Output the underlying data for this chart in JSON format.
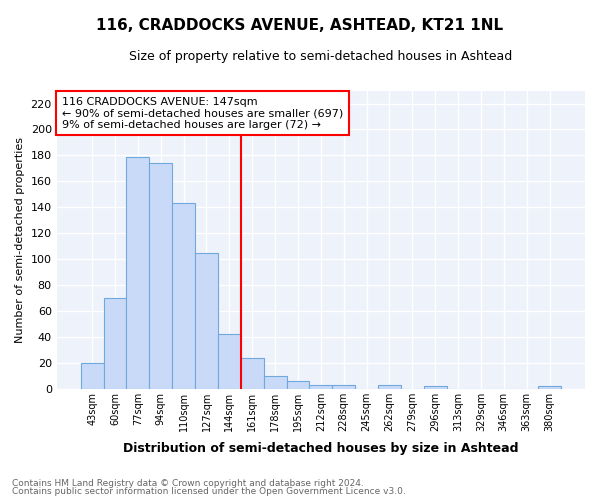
{
  "title": "116, CRADDOCKS AVENUE, ASHTEAD, KT21 1NL",
  "subtitle": "Size of property relative to semi-detached houses in Ashtead",
  "xlabel": "Distribution of semi-detached houses by size in Ashtead",
  "ylabel": "Number of semi-detached properties",
  "bar_labels": [
    "43sqm",
    "60sqm",
    "77sqm",
    "94sqm",
    "110sqm",
    "127sqm",
    "144sqm",
    "161sqm",
    "178sqm",
    "195sqm",
    "212sqm",
    "228sqm",
    "245sqm",
    "262sqm",
    "279sqm",
    "296sqm",
    "313sqm",
    "329sqm",
    "346sqm",
    "363sqm",
    "380sqm"
  ],
  "bar_values": [
    20,
    70,
    179,
    174,
    143,
    105,
    42,
    24,
    10,
    6,
    3,
    3,
    0,
    3,
    0,
    2,
    0,
    0,
    0,
    0,
    2
  ],
  "bar_color": "#c9daf8",
  "bar_edge_color": "#6fa8dc",
  "vline_color": "red",
  "annotation_title": "116 CRADDOCKS AVENUE: 147sqm",
  "annotation_line1": "← 90% of semi-detached houses are smaller (697)",
  "annotation_line2": "9% of semi-detached houses are larger (72) →",
  "annotation_box_color": "white",
  "annotation_box_edge_color": "red",
  "ylim": [
    0,
    230
  ],
  "yticks": [
    0,
    20,
    40,
    60,
    80,
    100,
    120,
    140,
    160,
    180,
    200,
    220
  ],
  "footer_line1": "Contains HM Land Registry data © Crown copyright and database right 2024.",
  "footer_line2": "Contains public sector information licensed under the Open Government Licence v3.0.",
  "bg_color": "#eef2fb"
}
